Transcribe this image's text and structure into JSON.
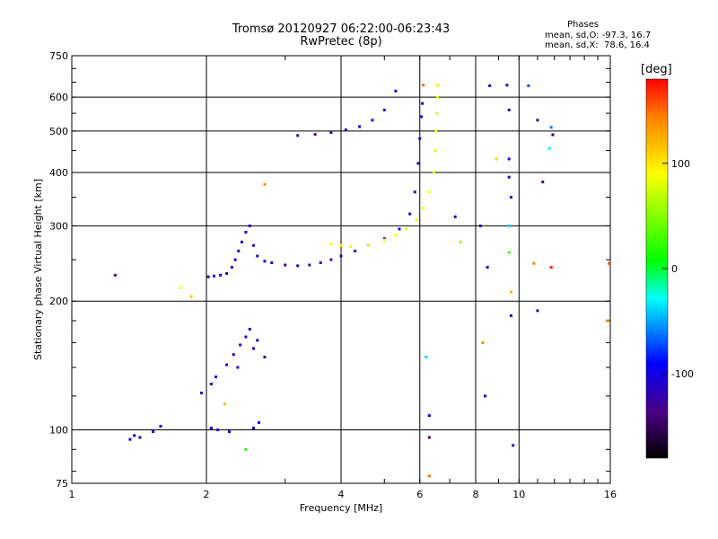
{
  "title_line1": "Tromsø 20120927 06:22:00-06:23:43",
  "title_line2": "RwPretec (8p)",
  "stats": {
    "heading": "Phases",
    "o_line": "mean, sd,O: -97.3, 16.7",
    "x_line": "mean, sd,X:  78.6, 16.4"
  },
  "colorbar": {
    "unit": "[deg]",
    "ticks": [
      {
        "value": 100,
        "label": "100"
      },
      {
        "value": 0,
        "label": "0"
      },
      {
        "value": -100,
        "label": "-100"
      }
    ],
    "range": [
      -180,
      180
    ]
  },
  "chart_data": {
    "type": "scatter",
    "title": "Tromsø 20120927 06:22:00-06:23:43",
    "subtitle": "RwPretec (8p)",
    "xlabel": "Frequency [MHz]",
    "ylabel": "Stationary phase Virtual Height [km]",
    "xscale": "log",
    "yscale": "log",
    "xlim": [
      1,
      16
    ],
    "ylim": [
      75,
      750
    ],
    "xticks": [
      {
        "value": 1,
        "label": "1"
      },
      {
        "value": 2,
        "label": "2"
      },
      {
        "value": 4,
        "label": "4"
      },
      {
        "value": 6,
        "label": "6"
      },
      {
        "value": 8,
        "label": "8"
      },
      {
        "value": 10,
        "label": "10"
      },
      {
        "value": 16,
        "label": "16"
      }
    ],
    "yticks": [
      {
        "value": 75,
        "label": "75"
      },
      {
        "value": 100,
        "label": "100"
      },
      {
        "value": 200,
        "label": "200"
      },
      {
        "value": 300,
        "label": "300"
      },
      {
        "value": 400,
        "label": "400"
      },
      {
        "value": 500,
        "label": "500"
      },
      {
        "value": 600,
        "label": "600"
      },
      {
        "value": 750,
        "label": "750"
      }
    ],
    "grid": true,
    "color_scale": "phase [deg], -180 to 180",
    "series": [
      {
        "points": [
          {
            "x": 1.35,
            "y": 95,
            "phase": -110
          },
          {
            "x": 1.38,
            "y": 97,
            "phase": -110
          },
          {
            "x": 1.42,
            "y": 96,
            "phase": -110
          },
          {
            "x": 1.52,
            "y": 99,
            "phase": -110
          },
          {
            "x": 1.58,
            "y": 102,
            "phase": -110
          },
          {
            "x": 2.05,
            "y": 101,
            "phase": -110
          },
          {
            "x": 2.12,
            "y": 100,
            "phase": -110
          },
          {
            "x": 2.25,
            "y": 99,
            "phase": -110
          },
          {
            "x": 2.55,
            "y": 101,
            "phase": -110
          },
          {
            "x": 2.62,
            "y": 104,
            "phase": -110
          },
          {
            "x": 1.95,
            "y": 122,
            "phase": -110
          },
          {
            "x": 2.05,
            "y": 128,
            "phase": -110
          },
          {
            "x": 2.1,
            "y": 133,
            "phase": -110
          },
          {
            "x": 2.22,
            "y": 142,
            "phase": -110
          },
          {
            "x": 2.3,
            "y": 150,
            "phase": -110
          },
          {
            "x": 2.38,
            "y": 158,
            "phase": -110
          },
          {
            "x": 2.45,
            "y": 165,
            "phase": -110
          },
          {
            "x": 2.5,
            "y": 172,
            "phase": -110
          },
          {
            "x": 2.6,
            "y": 162,
            "phase": -110
          },
          {
            "x": 2.7,
            "y": 148,
            "phase": -110
          },
          {
            "x": 2.35,
            "y": 140,
            "phase": -110
          },
          {
            "x": 2.55,
            "y": 155,
            "phase": -110
          },
          {
            "x": 2.02,
            "y": 228,
            "phase": -115
          },
          {
            "x": 2.08,
            "y": 229,
            "phase": -115
          },
          {
            "x": 2.15,
            "y": 230,
            "phase": -115
          },
          {
            "x": 2.22,
            "y": 232,
            "phase": -115
          },
          {
            "x": 2.28,
            "y": 240,
            "phase": -110
          },
          {
            "x": 2.32,
            "y": 250,
            "phase": -110
          },
          {
            "x": 2.36,
            "y": 262,
            "phase": -110
          },
          {
            "x": 2.4,
            "y": 275,
            "phase": -110
          },
          {
            "x": 2.45,
            "y": 290,
            "phase": -110
          },
          {
            "x": 2.5,
            "y": 300,
            "phase": -110
          },
          {
            "x": 2.55,
            "y": 270,
            "phase": -110
          },
          {
            "x": 2.6,
            "y": 255,
            "phase": -110
          },
          {
            "x": 2.7,
            "y": 248,
            "phase": -110
          },
          {
            "x": 2.8,
            "y": 246,
            "phase": -120
          },
          {
            "x": 3.0,
            "y": 243,
            "phase": -125
          },
          {
            "x": 3.2,
            "y": 242,
            "phase": -130
          },
          {
            "x": 3.4,
            "y": 243,
            "phase": -130
          },
          {
            "x": 3.6,
            "y": 246,
            "phase": -130
          },
          {
            "x": 3.8,
            "y": 250,
            "phase": -130
          },
          {
            "x": 4.0,
            "y": 255,
            "phase": -125
          },
          {
            "x": 4.3,
            "y": 262,
            "phase": -120
          },
          {
            "x": 4.6,
            "y": 270,
            "phase": -115
          },
          {
            "x": 5.0,
            "y": 280,
            "phase": -110
          },
          {
            "x": 5.4,
            "y": 295,
            "phase": -110
          },
          {
            "x": 5.7,
            "y": 320,
            "phase": -110
          },
          {
            "x": 5.85,
            "y": 360,
            "phase": -110
          },
          {
            "x": 5.95,
            "y": 420,
            "phase": -110
          },
          {
            "x": 6.0,
            "y": 480,
            "phase": -110
          },
          {
            "x": 6.05,
            "y": 540,
            "phase": -110
          },
          {
            "x": 6.08,
            "y": 580,
            "phase": -110
          },
          {
            "x": 3.2,
            "y": 488,
            "phase": -125
          },
          {
            "x": 3.5,
            "y": 491,
            "phase": -130
          },
          {
            "x": 3.8,
            "y": 496,
            "phase": -125
          },
          {
            "x": 4.1,
            "y": 503,
            "phase": -120
          },
          {
            "x": 4.4,
            "y": 512,
            "phase": -115
          },
          {
            "x": 4.7,
            "y": 530,
            "phase": -110
          },
          {
            "x": 5.0,
            "y": 560,
            "phase": -110
          },
          {
            "x": 5.3,
            "y": 620,
            "phase": -110
          }
        ]
      },
      {
        "points": [
          {
            "x": 3.8,
            "y": 272,
            "phase": 95
          },
          {
            "x": 4.0,
            "y": 270,
            "phase": 100
          },
          {
            "x": 4.2,
            "y": 268,
            "phase": 95
          },
          {
            "x": 4.6,
            "y": 270,
            "phase": 90
          },
          {
            "x": 5.0,
            "y": 278,
            "phase": 90
          },
          {
            "x": 5.3,
            "y": 285,
            "phase": 85
          },
          {
            "x": 5.6,
            "y": 295,
            "phase": 80
          },
          {
            "x": 5.9,
            "y": 310,
            "phase": 80
          },
          {
            "x": 6.1,
            "y": 330,
            "phase": 80
          },
          {
            "x": 6.3,
            "y": 360,
            "phase": 80
          },
          {
            "x": 6.45,
            "y": 400,
            "phase": 80
          },
          {
            "x": 6.5,
            "y": 450,
            "phase": 80
          },
          {
            "x": 6.52,
            "y": 500,
            "phase": 80
          },
          {
            "x": 6.55,
            "y": 550,
            "phase": 80
          },
          {
            "x": 6.57,
            "y": 600,
            "phase": 80
          },
          {
            "x": 6.58,
            "y": 640,
            "phase": 80
          }
        ]
      }
    ],
    "scattered_points": [
      {
        "x": 8.6,
        "y": 638,
        "phase": -120
      },
      {
        "x": 9.4,
        "y": 640,
        "phase": -110
      },
      {
        "x": 9.5,
        "y": 560,
        "phase": -110
      },
      {
        "x": 9.5,
        "y": 430,
        "phase": -110
      },
      {
        "x": 9.5,
        "y": 390,
        "phase": -110
      },
      {
        "x": 9.6,
        "y": 350,
        "phase": -110
      },
      {
        "x": 9.5,
        "y": 300,
        "phase": -40
      },
      {
        "x": 9.5,
        "y": 260,
        "phase": 30
      },
      {
        "x": 9.6,
        "y": 210,
        "phase": 120
      },
      {
        "x": 9.6,
        "y": 185,
        "phase": -110
      },
      {
        "x": 9.7,
        "y": 92,
        "phase": -110
      },
      {
        "x": 10.5,
        "y": 638,
        "phase": -70
      },
      {
        "x": 11.0,
        "y": 530,
        "phase": -130
      },
      {
        "x": 11.8,
        "y": 510,
        "phase": -60
      },
      {
        "x": 11.9,
        "y": 490,
        "phase": -150
      },
      {
        "x": 11.7,
        "y": 455,
        "phase": -30
      },
      {
        "x": 11.3,
        "y": 380,
        "phase": -140
      },
      {
        "x": 11.8,
        "y": 240,
        "phase": 170
      },
      {
        "x": 11.0,
        "y": 190,
        "phase": -130
      },
      {
        "x": 10.8,
        "y": 245,
        "phase": 140
      },
      {
        "x": 15.8,
        "y": 180,
        "phase": 140
      },
      {
        "x": 15.9,
        "y": 245,
        "phase": 160
      },
      {
        "x": 8.2,
        "y": 300,
        "phase": -110
      },
      {
        "x": 8.3,
        "y": 160,
        "phase": 140
      },
      {
        "x": 8.4,
        "y": 120,
        "phase": -110
      },
      {
        "x": 8.5,
        "y": 240,
        "phase": -120
      },
      {
        "x": 7.2,
        "y": 315,
        "phase": -110
      },
      {
        "x": 6.3,
        "y": 78,
        "phase": 150
      },
      {
        "x": 6.3,
        "y": 96,
        "phase": -140
      },
      {
        "x": 6.3,
        "y": 108,
        "phase": -110
      },
      {
        "x": 6.2,
        "y": 148,
        "phase": -40
      },
      {
        "x": 7.4,
        "y": 275,
        "phase": 60
      },
      {
        "x": 8.9,
        "y": 430,
        "phase": 110
      },
      {
        "x": 6.1,
        "y": 640,
        "phase": 150
      },
      {
        "x": 1.25,
        "y": 230,
        "phase": -130
      },
      {
        "x": 1.75,
        "y": 215,
        "phase": 90
      },
      {
        "x": 1.85,
        "y": 205,
        "phase": 110
      },
      {
        "x": 2.7,
        "y": 375,
        "phase": 140
      },
      {
        "x": 2.45,
        "y": 90,
        "phase": 20
      },
      {
        "x": 2.2,
        "y": 115,
        "phase": 120
      }
    ]
  }
}
